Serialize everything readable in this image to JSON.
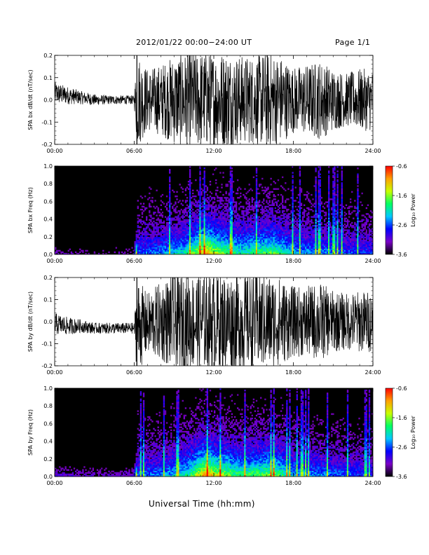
{
  "header": {
    "title": "2012/01/22  00:00−24:00 UT",
    "page": "Page 1/1"
  },
  "footer": {
    "xlabel": "Universal Time (hh:mm)"
  },
  "colors": {
    "trace": "#000000",
    "background": "#ffffff",
    "colormap": [
      "#000000",
      "#7a00c8",
      "#0000ff",
      "#00c8ff",
      "#00ff64",
      "#c8ff00",
      "#ffa000",
      "#ff0000"
    ]
  },
  "chart_data": [
    {
      "type": "line",
      "ylabel": "SPA bx dB/dt (nT/sec)",
      "x_ticks": [
        "00:00",
        "06:00",
        "12:00",
        "18:00",
        "24:00"
      ],
      "xlim": [
        0,
        24
      ],
      "ylim": [
        -0.2,
        0.2
      ],
      "y_ticks": [
        "-0.2",
        "-0.1",
        "0.0",
        "0.1",
        "0.2"
      ],
      "series": [
        {
          "x": [
            0,
            1,
            2,
            3,
            4,
            5,
            6,
            6.2,
            7,
            8,
            9,
            10,
            11,
            12,
            13,
            14,
            15,
            16,
            17,
            18,
            19,
            20,
            21,
            22,
            23,
            24
          ],
          "y_center": [
            0.03,
            0.02,
            0.01,
            0.0,
            0.0,
            0.0,
            0.0,
            0.0,
            0.0,
            0.0,
            0.0,
            0.0,
            0.0,
            0.0,
            0.0,
            0.0,
            0.0,
            0.0,
            0.0,
            0.0,
            0.0,
            0.0,
            0.0,
            0.0,
            0.0,
            0.0
          ],
          "y_amplitude": [
            0.05,
            0.04,
            0.03,
            0.025,
            0.02,
            0.02,
            0.02,
            0.22,
            0.14,
            0.16,
            0.2,
            0.22,
            0.22,
            0.22,
            0.22,
            0.2,
            0.2,
            0.22,
            0.2,
            0.15,
            0.16,
            0.18,
            0.14,
            0.12,
            0.14,
            0.14
          ]
        }
      ]
    },
    {
      "type": "heatmap",
      "ylabel": "SPA bx Freq (Hz)",
      "x_ticks": [
        "00:00",
        "06:00",
        "12:00",
        "18:00",
        "24:00"
      ],
      "xlim": [
        0,
        24
      ],
      "ylim": [
        0.0,
        1.0
      ],
      "y_ticks": [
        "0.0",
        "0.2",
        "0.4",
        "0.6",
        "0.8",
        "1.0"
      ],
      "colorbar": {
        "label": "Log₁₀ Power",
        "ticks": [
          "-0.6",
          "-1.6",
          "-2.6",
          "-3.6"
        ],
        "range": [
          -3.6,
          -0.6
        ]
      },
      "activity": [
        {
          "x": 0,
          "level": 0.05
        },
        {
          "x": 3,
          "level": 0.04
        },
        {
          "x": 6,
          "level": 0.05
        },
        {
          "x": 6.2,
          "level": 0.35
        },
        {
          "x": 8,
          "level": 0.4
        },
        {
          "x": 10,
          "level": 0.55
        },
        {
          "x": 11.5,
          "level": 0.9
        },
        {
          "x": 12,
          "level": 0.75
        },
        {
          "x": 14,
          "level": 0.55
        },
        {
          "x": 16.5,
          "level": 0.65
        },
        {
          "x": 18,
          "level": 0.45
        },
        {
          "x": 20,
          "level": 0.4
        },
        {
          "x": 24,
          "level": 0.3
        }
      ]
    },
    {
      "type": "line",
      "ylabel": "SPA by dB/dt (nT/sec)",
      "x_ticks": [
        "00:00",
        "06:00",
        "12:00",
        "18:00",
        "24:00"
      ],
      "xlim": [
        0,
        24
      ],
      "ylim": [
        -0.2,
        0.2
      ],
      "y_ticks": [
        "-0.2",
        "-0.1",
        "0.0",
        "0.1",
        "0.2"
      ],
      "series": [
        {
          "x": [
            0,
            1,
            2,
            3,
            4,
            5,
            6,
            6.2,
            7,
            8,
            9,
            10,
            11,
            12,
            13,
            14,
            15,
            16,
            17,
            18,
            19,
            20,
            21,
            22,
            23,
            24
          ],
          "y_center": [
            -0.01,
            -0.02,
            -0.02,
            -0.03,
            -0.03,
            -0.03,
            -0.03,
            -0.02,
            -0.01,
            0.0,
            0.0,
            0.0,
            0.0,
            0.0,
            0.0,
            0.0,
            0.0,
            0.0,
            0.0,
            0.0,
            0.0,
            0.0,
            0.0,
            0.0,
            0.0,
            0.0
          ],
          "y_amplitude": [
            0.05,
            0.04,
            0.03,
            0.025,
            0.025,
            0.025,
            0.025,
            0.22,
            0.14,
            0.18,
            0.22,
            0.22,
            0.22,
            0.22,
            0.22,
            0.22,
            0.22,
            0.22,
            0.2,
            0.16,
            0.16,
            0.18,
            0.14,
            0.13,
            0.14,
            0.14
          ]
        }
      ]
    },
    {
      "type": "heatmap",
      "ylabel": "SPA by Freq (Hz)",
      "x_ticks": [
        "00:00",
        "06:00",
        "12:00",
        "18:00",
        "24:00"
      ],
      "xlim": [
        0,
        24
      ],
      "ylim": [
        0.0,
        1.0
      ],
      "y_ticks": [
        "0.0",
        "0.2",
        "0.4",
        "0.6",
        "0.8",
        "1.0"
      ],
      "colorbar": {
        "label": "Log₁₀ Power",
        "ticks": [
          "-0.6",
          "-1.6",
          "-2.6",
          "-3.6"
        ],
        "range": [
          -3.6,
          -0.6
        ]
      },
      "activity": [
        {
          "x": 0,
          "level": 0.08
        },
        {
          "x": 3,
          "level": 0.06
        },
        {
          "x": 6,
          "level": 0.07
        },
        {
          "x": 6.2,
          "level": 0.35
        },
        {
          "x": 8,
          "level": 0.4
        },
        {
          "x": 10,
          "level": 0.55
        },
        {
          "x": 11.5,
          "level": 0.95
        },
        {
          "x": 12,
          "level": 0.8
        },
        {
          "x": 14,
          "level": 0.6
        },
        {
          "x": 16.5,
          "level": 0.7
        },
        {
          "x": 18,
          "level": 0.45
        },
        {
          "x": 20,
          "level": 0.4
        },
        {
          "x": 24,
          "level": 0.3
        }
      ]
    }
  ]
}
